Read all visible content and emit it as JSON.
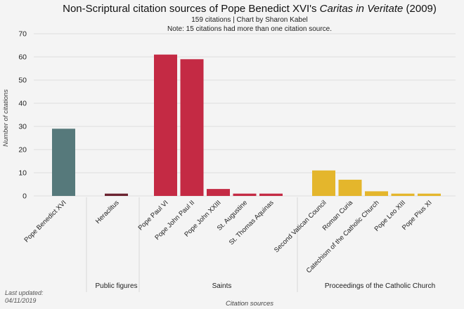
{
  "chart_data": {
    "type": "bar",
    "title_prefix": "Non-Scriptural citation sources of Pope Benedict XVI's ",
    "title_italic": "Caritas in Veritate",
    "title_suffix": " (2009)",
    "subtitle": "159 citations | Chart by Sharon Kabel",
    "note": "Note: 15 citations had more than one citation source.",
    "xlabel": "Citation sources",
    "ylabel": "Number of citations",
    "ylim": [
      0,
      70
    ],
    "yticks": [
      "0",
      "10",
      "20",
      "30",
      "40",
      "50",
      "60",
      "70"
    ],
    "grid": true,
    "categories": [
      "Pope Benedict XVI",
      "Heraclitus",
      "Pope Paul VI",
      "Pope John Paul II",
      "Pope John XXIII",
      "St. Augustine",
      "St. Thomas Aquinas",
      "Second Vatican Council",
      "Roman Curia",
      "Catechism of the Catholic Church",
      "Pope Leo XIII",
      "Pope Pius XI"
    ],
    "values": [
      29,
      1,
      61,
      59,
      3,
      1,
      1,
      11,
      7,
      2,
      1,
      1
    ],
    "groups": [
      {
        "name": "",
        "members": [
          "Pope Benedict XVI"
        ],
        "color": "#56797b"
      },
      {
        "name": "Public figures",
        "members": [
          "Heraclitus"
        ],
        "color": "#6b2330"
      },
      {
        "name": "Saints",
        "members": [
          "Pope Paul VI",
          "Pope John Paul II",
          "Pope John XXIII",
          "St. Augustine",
          "St. Thomas Aquinas"
        ],
        "color": "#c42a44"
      },
      {
        "name": "Proceedings of the Catholic Church",
        "members": [
          "Second Vatican Council",
          "Roman Curia",
          "Catechism of the Catholic Church",
          "Pope Leo XIII",
          "Pope Pius XI"
        ],
        "color": "#e4b62c"
      }
    ]
  },
  "footer": {
    "last_updated_label": "Last updated:",
    "last_updated_date": "04/11/2019"
  }
}
